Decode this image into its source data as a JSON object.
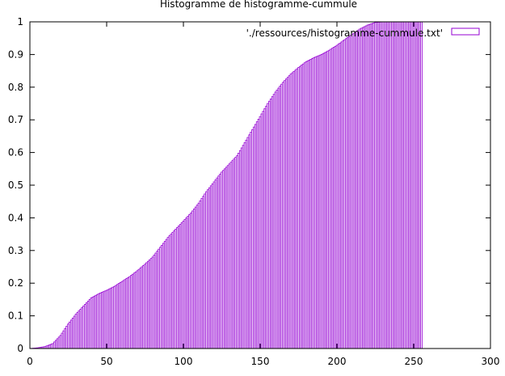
{
  "chart_data": {
    "type": "bar",
    "title": "Histogramme de histogramme-cummule",
    "xlabel": "",
    "ylabel": "",
    "xlim": [
      0,
      300
    ],
    "ylim": [
      0,
      1
    ],
    "xticks": [
      0,
      50,
      100,
      150,
      200,
      250,
      300
    ],
    "yticks": [
      0,
      0.1,
      0.2,
      0.3,
      0.4,
      0.5,
      0.6,
      0.7,
      0.8,
      0.9,
      1
    ],
    "grid": false,
    "legend_position": "top-right",
    "series": [
      {
        "name": "'./ressources/histogramme-cummule.txt'",
        "color": "#9400d3",
        "x_range": [
          0,
          255
        ],
        "anchors": [
          [
            0,
            0
          ],
          [
            5,
            0.002
          ],
          [
            10,
            0.006
          ],
          [
            15,
            0.015
          ],
          [
            20,
            0.04
          ],
          [
            25,
            0.075
          ],
          [
            30,
            0.105
          ],
          [
            35,
            0.13
          ],
          [
            40,
            0.155
          ],
          [
            45,
            0.168
          ],
          [
            50,
            0.178
          ],
          [
            55,
            0.19
          ],
          [
            60,
            0.205
          ],
          [
            65,
            0.22
          ],
          [
            70,
            0.238
          ],
          [
            75,
            0.258
          ],
          [
            80,
            0.28
          ],
          [
            85,
            0.31
          ],
          [
            90,
            0.34
          ],
          [
            95,
            0.365
          ],
          [
            100,
            0.39
          ],
          [
            105,
            0.415
          ],
          [
            110,
            0.445
          ],
          [
            115,
            0.48
          ],
          [
            120,
            0.51
          ],
          [
            125,
            0.54
          ],
          [
            130,
            0.565
          ],
          [
            135,
            0.59
          ],
          [
            140,
            0.63
          ],
          [
            145,
            0.67
          ],
          [
            150,
            0.71
          ],
          [
            155,
            0.75
          ],
          [
            160,
            0.785
          ],
          [
            165,
            0.815
          ],
          [
            170,
            0.84
          ],
          [
            175,
            0.86
          ],
          [
            180,
            0.878
          ],
          [
            185,
            0.89
          ],
          [
            190,
            0.9
          ],
          [
            195,
            0.913
          ],
          [
            200,
            0.928
          ],
          [
            205,
            0.945
          ],
          [
            210,
            0.962
          ],
          [
            215,
            0.978
          ],
          [
            220,
            0.99
          ],
          [
            225,
            0.998
          ],
          [
            230,
            1.0
          ],
          [
            255,
            1.0
          ]
        ]
      }
    ]
  }
}
